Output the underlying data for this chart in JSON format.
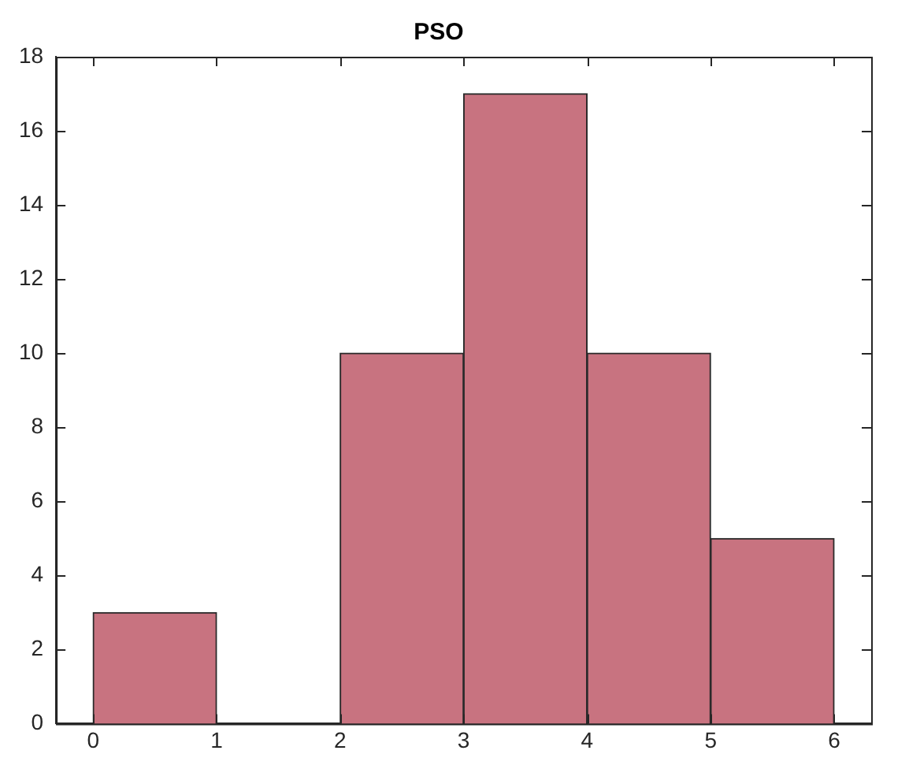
{
  "chart_data": {
    "type": "histogram",
    "title": "PSO",
    "bins": [
      0,
      1,
      2,
      3,
      4,
      5,
      6
    ],
    "values": [
      3,
      0,
      10,
      17,
      10,
      5
    ],
    "color": "#c87380",
    "xlim": [
      -0.3,
      6.3
    ],
    "xticks": [
      0,
      1,
      2,
      3,
      4,
      5,
      6
    ],
    "ylim": [
      0,
      18
    ],
    "yticks": [
      0,
      2,
      4,
      6,
      8,
      10,
      12,
      14,
      16,
      18
    ],
    "grid": false,
    "legend": false
  }
}
